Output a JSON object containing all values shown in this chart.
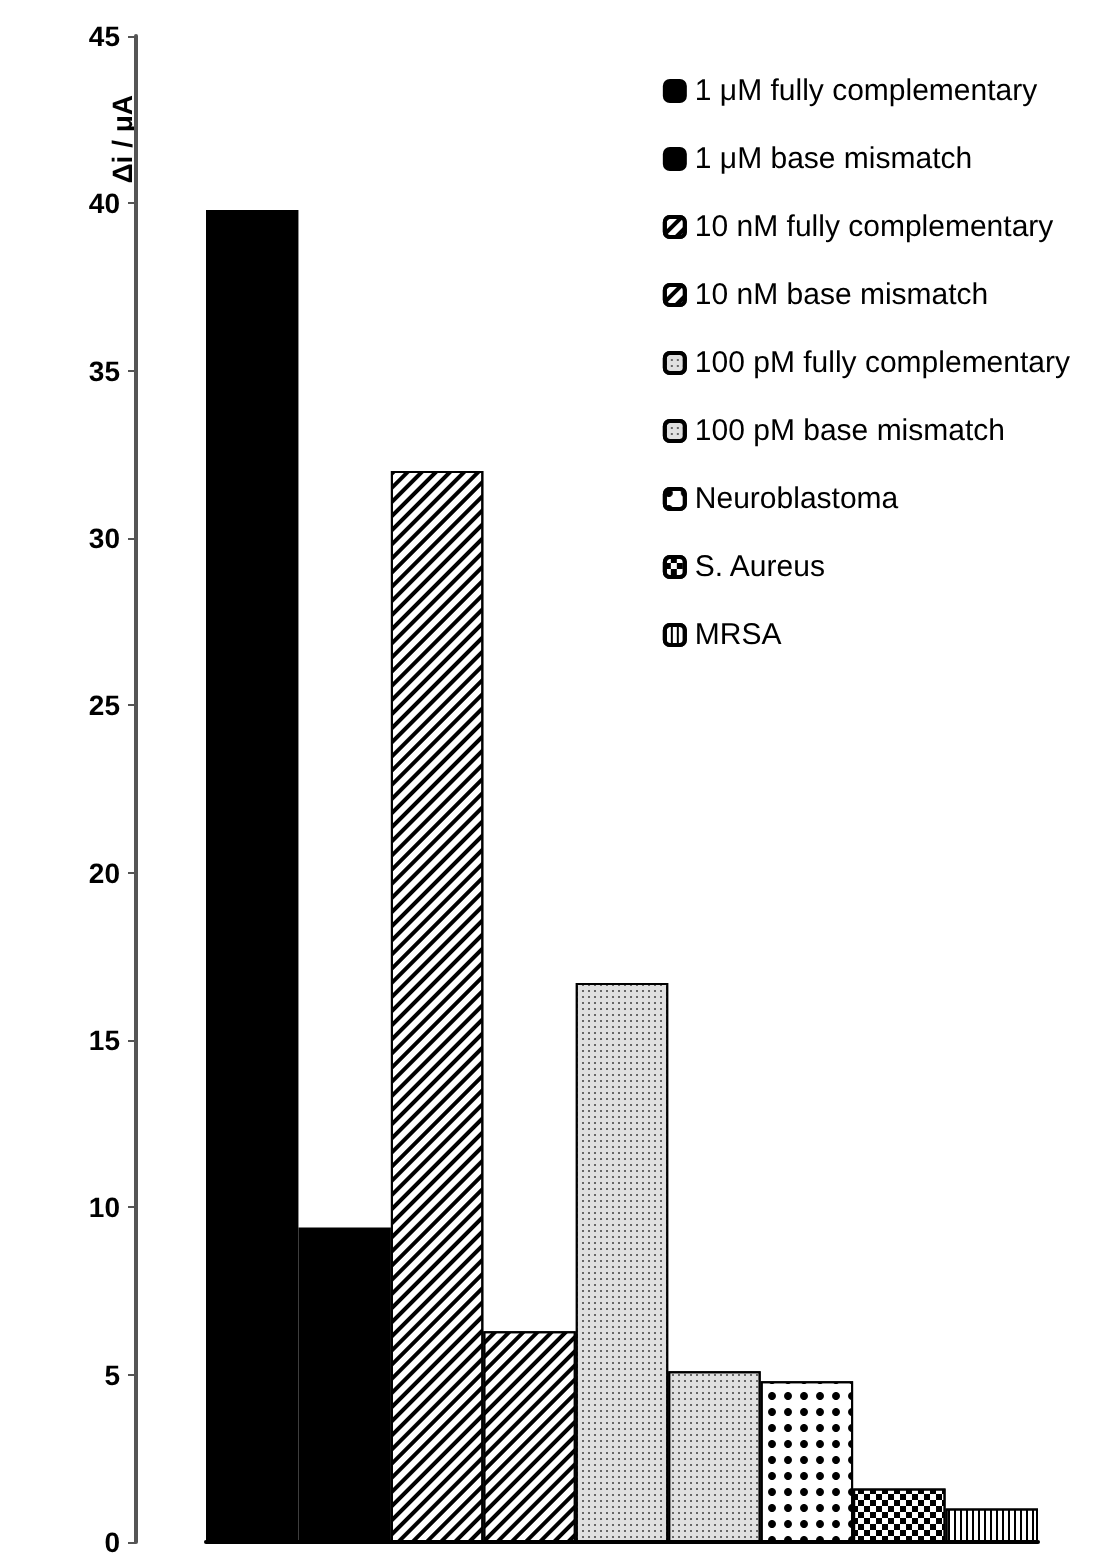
{
  "chart_data": {
    "type": "bar",
    "ylabel": "Δi / μA",
    "categories": [
      null,
      null,
      null,
      null,
      null,
      null,
      null,
      null,
      null
    ],
    "series": [
      {
        "name": "1 μM fully complementary",
        "color": "#000000",
        "values": [
          39.8,
          null,
          null,
          null,
          null,
          null,
          null,
          null,
          null
        ]
      },
      {
        "name": "1 μM base mismatch",
        "color": "#000000",
        "values": [
          null,
          9.4,
          null,
          null,
          null,
          null,
          null,
          null,
          null
        ]
      },
      {
        "name": "10 nM fully complementary",
        "color": "#ffffff",
        "values": [
          null,
          null,
          32.0,
          null,
          null,
          null,
          null,
          null,
          null
        ]
      },
      {
        "name": "10 nM base mismatch",
        "color": "#ffffff",
        "values": [
          null,
          null,
          null,
          6.3,
          null,
          null,
          null,
          null,
          null
        ]
      },
      {
        "name": "100 pM fully complementary",
        "color": "#e0e0e0",
        "values": [
          null,
          null,
          null,
          null,
          16.7,
          null,
          null,
          null,
          null
        ]
      },
      {
        "name": "100 pM base mismatch",
        "color": "#e0e0e0",
        "values": [
          null,
          null,
          null,
          null,
          null,
          5.1,
          null,
          null,
          null
        ]
      },
      {
        "name": "Neuroblastoma",
        "color": "#ffffff",
        "values": [
          null,
          null,
          null,
          null,
          null,
          null,
          4.8,
          null,
          null
        ]
      },
      {
        "name": "S. Aureus",
        "color": "#ffffff",
        "values": [
          null,
          null,
          null,
          null,
          null,
          null,
          null,
          1.6,
          null
        ]
      },
      {
        "name": "MRSA",
        "color": "#ffffff",
        "values": [
          null,
          null,
          null,
          null,
          null,
          null,
          null,
          null,
          1.0
        ]
      }
    ],
    "ylim": [
      0,
      45
    ],
    "yticks": [
      0,
      5,
      10,
      15,
      20,
      25,
      30,
      35,
      40,
      45
    ],
    "grid": false,
    "legend": "top right"
  }
}
